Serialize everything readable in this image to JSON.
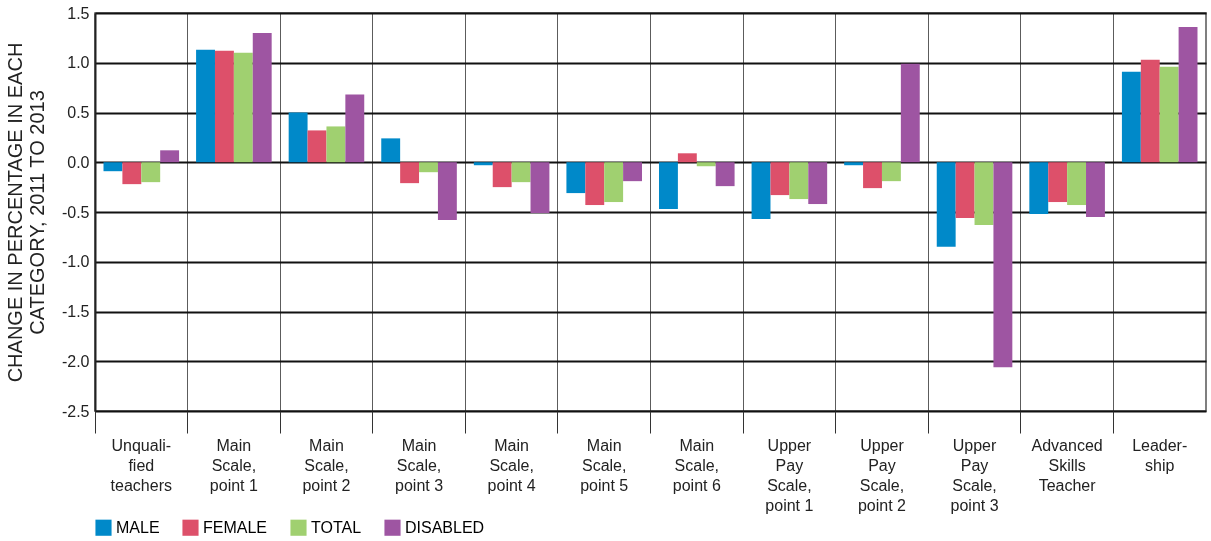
{
  "chart_data": {
    "type": "bar",
    "ylabel": "CHANGE IN PERCENTAGE IN EACH\nCATEGORY, 2011 TO 2013",
    "categories": [
      "Unquali-\nfied\nteachers",
      "Main\nScale,\npoint 1",
      "Main\nScale,\npoint 2",
      "Main\nScale,\npoint 3",
      "Main\nScale,\npoint 4",
      "Main\nScale,\npoint 5",
      "Main\nScale,\npoint 6",
      "Upper\nPay\nScale,\npoint 1",
      "Upper\nPay\nScale,\npoint 2",
      "Upper\nPay\nScale,\npoint 3",
      "Advanced\nSkills\nTeacher",
      "Leader-\nship"
    ],
    "series": [
      {
        "name": "MALE",
        "color": "#0089c9",
        "values": [
          -0.09,
          1.13,
          0.5,
          0.24,
          -0.03,
          -0.31,
          -0.47,
          -0.57,
          -0.03,
          -0.85,
          -0.52,
          0.91
        ]
      },
      {
        "name": "FEMALE",
        "color": "#dd506a",
        "values": [
          -0.22,
          1.12,
          0.32,
          -0.21,
          -0.25,
          -0.43,
          0.09,
          -0.33,
          -0.26,
          -0.56,
          -0.4,
          1.03
        ]
      },
      {
        "name": "TOTAL",
        "color": "#a0d070",
        "values": [
          -0.2,
          1.1,
          0.36,
          -0.1,
          -0.2,
          -0.4,
          -0.04,
          -0.37,
          -0.19,
          -0.63,
          -0.43,
          0.96
        ]
      },
      {
        "name": "DISABLED",
        "color": "#9e55a2",
        "values": [
          0.12,
          1.3,
          0.68,
          -0.58,
          -0.51,
          -0.19,
          -0.24,
          -0.42,
          0.99,
          -2.06,
          -0.55,
          1.36
        ]
      }
    ],
    "ylim": [
      -2.5,
      1.5
    ],
    "yticks": [
      {
        "value": -2.5,
        "label": "-2.5"
      },
      {
        "value": -2.0,
        "label": "-2.0"
      },
      {
        "value": -1.5,
        "label": "-1.5"
      },
      {
        "value": -1.0,
        "label": "-1.0"
      },
      {
        "value": -0.5,
        "label": "-0.5"
      },
      {
        "value": 0.0,
        "label": "0.0"
      },
      {
        "value": 0.5,
        "label": "0.5"
      },
      {
        "value": 1.0,
        "label": "1.0"
      },
      {
        "value": 1.5,
        "label": "1.5"
      }
    ],
    "grid": true,
    "legend": "bottom left"
  }
}
